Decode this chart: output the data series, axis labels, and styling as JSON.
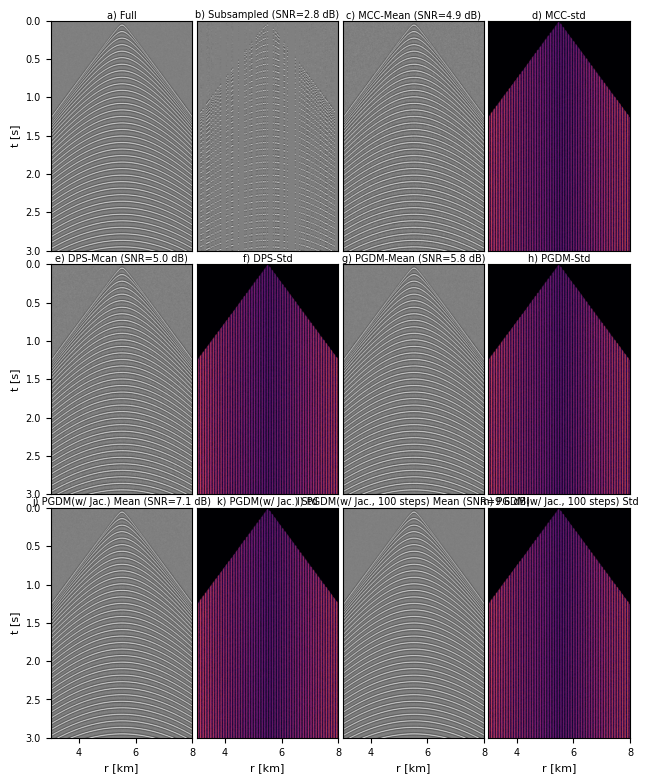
{
  "figsize": [
    6.4,
    7.71
  ],
  "dpi": 100,
  "nrows": 3,
  "ncols": 4,
  "xlim": [
    3,
    8
  ],
  "ylim": [
    3.0,
    0.0
  ],
  "xticks": [
    4,
    6,
    8
  ],
  "yticks": [
    0.0,
    0.5,
    1.0,
    1.5,
    2.0,
    2.5,
    3.0
  ],
  "xlabel": "r [km]",
  "ylabel": "t [s]",
  "titles": [
    "a) Full",
    "b) Subsampled (SNR=2.8 dB)",
    "c) MCC-Mean (SNR=4.9 dB)",
    "d) MCC-std",
    "e) DPS-Mcan (SNR=5.0 dB)",
    "f) DPS-Std",
    "g) PGDM-Mean (SNR=5.8 dB)",
    "h) PGDM-Std",
    "j) PGDM(w/ Jac.) Mean (SNR=7.1 dB)",
    "k) PGDM(w/ Jac.) Std",
    "l) PGDM(w/ Jac., 100 steps) Mean (SNR=9.6 dB)",
    "m) PGDM(w/ Jac., 100 steps) Std"
  ],
  "is_std": [
    false,
    false,
    false,
    true,
    false,
    true,
    false,
    true,
    false,
    true,
    false,
    true
  ],
  "gray_cmap": "gray",
  "std_cmap": "inferno",
  "title_fontsize": 7.0,
  "label_fontsize": 8,
  "tick_fontsize": 7,
  "nx": 200,
  "nt": 400,
  "r_min": 3.0,
  "r_max": 8.0,
  "t_min": 0.0,
  "t_max": 3.0,
  "apex_r": 5.5,
  "v_apparent": 2.0,
  "freq": 30.0,
  "num_events": 35,
  "subsampling_rate": 0.35
}
